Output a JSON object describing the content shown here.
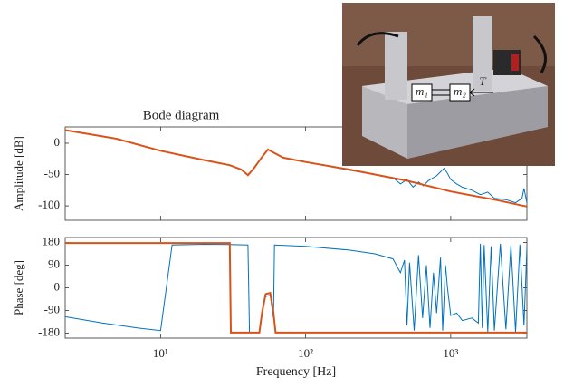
{
  "chart_data": [
    {
      "type": "line",
      "title": "Bode diagram",
      "y_label": "Amplitude [dB]",
      "xscale": "log",
      "xlim": [
        2.2,
        3350
      ],
      "ylim": [
        -123,
        26
      ],
      "yticks": [
        -100,
        -50,
        0
      ],
      "grid": false,
      "series": [
        {
          "color": "#0072bd",
          "x": [
            2.2,
            5,
            10,
            20,
            30,
            36,
            40,
            44,
            50,
            55,
            60,
            70,
            100,
            200,
            300,
            400,
            450,
            500,
            550,
            600,
            650,
            700,
            800,
            900,
            950,
            1000,
            1100,
            1200,
            1400,
            1600,
            1800,
            2000,
            2400,
            2800,
            3100,
            3200,
            3350
          ],
          "values": [
            21,
            7,
            -12,
            -27,
            -35,
            -42,
            -51,
            -40,
            -22,
            -10,
            -15,
            -23,
            -30,
            -43,
            -50,
            -55,
            -65,
            -58,
            -70,
            -62,
            -68,
            -60,
            -52,
            -40,
            -48,
            -58,
            -65,
            -70,
            -75,
            -82,
            -78,
            -88,
            -90,
            -95,
            -88,
            -72,
            -95
          ]
        },
        {
          "color": "#d95319",
          "x": [
            2.2,
            5,
            10,
            20,
            30,
            36,
            40,
            44,
            50,
            55,
            60,
            70,
            100,
            200,
            500,
            1000,
            2000,
            3350
          ],
          "values": [
            21,
            7,
            -12,
            -27,
            -35,
            -42,
            -51,
            -40,
            -22,
            -10,
            -15,
            -23,
            -30,
            -42,
            -60,
            -77,
            -90,
            -101
          ]
        }
      ]
    },
    {
      "type": "line",
      "y_label": "Phase [deg]",
      "x_label": "Frequency [Hz]",
      "xscale": "log",
      "xlim": [
        2.2,
        3350
      ],
      "ylim": [
        -200,
        200
      ],
      "yticks": [
        -180,
        -90,
        0,
        90,
        180
      ],
      "grid": false,
      "xticks": [
        {
          "value": 10,
          "label": "10¹"
        },
        {
          "value": 100,
          "label": "10²"
        },
        {
          "value": 1000,
          "label": "10³"
        }
      ],
      "series": [
        {
          "color": "#0072bd",
          "x": [
            2.2,
            4,
            7,
            10,
            12,
            20,
            30,
            40,
            41,
            48,
            50,
            53,
            57,
            60,
            61,
            100,
            200,
            300,
            400,
            450,
            480,
            500,
            520,
            560,
            600,
            640,
            680,
            720,
            760,
            800,
            850,
            880,
            920,
            950,
            1000,
            1100,
            1200,
            1400,
            1550,
            1600,
            1650,
            1700,
            1800,
            1900,
            2000,
            2200,
            2400,
            2600,
            2800,
            3000,
            3200,
            3350
          ],
          "values": [
            -115,
            -140,
            -160,
            -170,
            170,
            173,
            172,
            170,
            -178,
            -178,
            -100,
            -35,
            -30,
            -120,
            170,
            165,
            150,
            135,
            115,
            60,
            110,
            -150,
            100,
            -170,
            130,
            -120,
            90,
            -160,
            60,
            -100,
            120,
            -170,
            90,
            0,
            -110,
            -100,
            -130,
            -120,
            -140,
            175,
            -160,
            170,
            -175,
            165,
            -170,
            175,
            -165,
            170,
            -175,
            172,
            -150,
            160
          ]
        },
        {
          "color": "#d95319",
          "x": [
            2.2,
            30,
            30.5,
            48,
            50,
            53,
            57,
            60,
            62,
            3350
          ],
          "values": [
            178,
            178,
            -178,
            -178,
            -100,
            -25,
            -20,
            -100,
            -178,
            -178
          ]
        }
      ]
    }
  ],
  "inset": {
    "labels": [
      "m₁",
      "m₂",
      "T"
    ]
  }
}
